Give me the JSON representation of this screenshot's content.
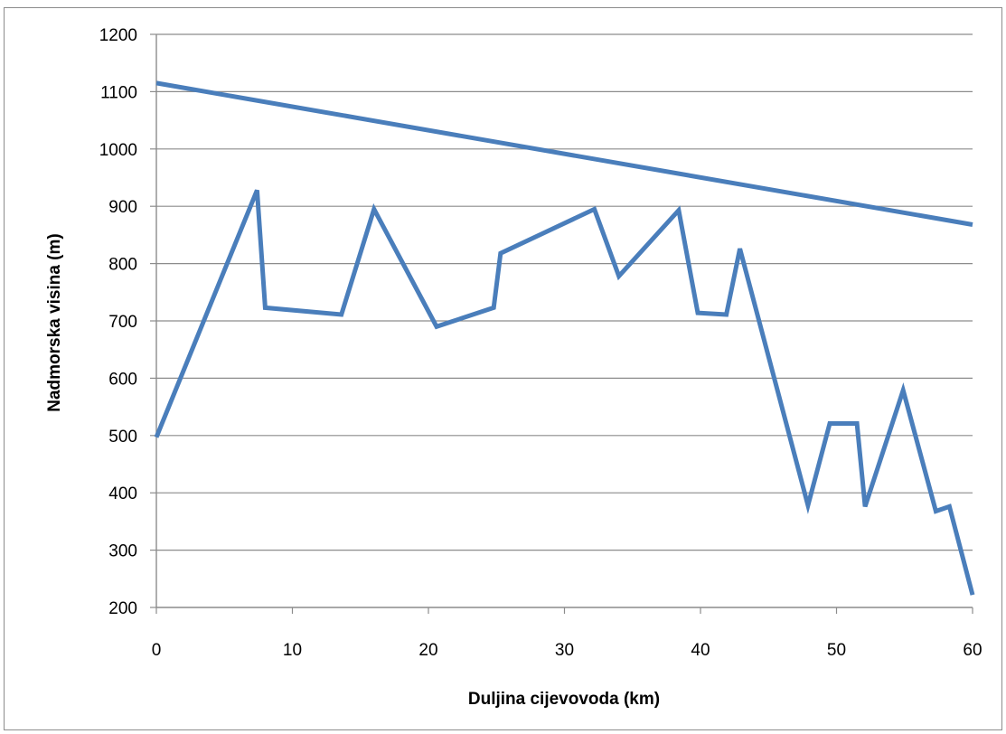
{
  "chart_data": {
    "type": "line",
    "title": "",
    "xlabel": "Duljina cijevovoda  (km)",
    "ylabel": "Nadmorska visina (m)",
    "xlim": [
      0,
      60
    ],
    "ylim": [
      200,
      1200
    ],
    "xticks": [
      0,
      10,
      20,
      30,
      40,
      50,
      60
    ],
    "yticks": [
      200,
      300,
      400,
      500,
      600,
      700,
      800,
      900,
      1000,
      1100,
      1200
    ],
    "grid": "horizontal",
    "legend": "none",
    "colors": {
      "series": "#4a7ebb",
      "grid": "#8c8c8c",
      "axis": "#8c8c8c"
    },
    "series": [
      {
        "points": [
          [
            0,
            1115
          ],
          [
            60,
            868
          ]
        ]
      },
      {
        "points": [
          [
            0,
            497
          ],
          [
            7.4,
            928
          ],
          [
            8.0,
            723
          ],
          [
            13.6,
            711
          ],
          [
            16.0,
            895
          ],
          [
            20.6,
            690
          ],
          [
            24.8,
            723
          ],
          [
            25.3,
            818
          ],
          [
            32.2,
            895
          ],
          [
            34.0,
            778
          ],
          [
            38.4,
            893
          ],
          [
            39.8,
            714
          ],
          [
            41.9,
            711
          ],
          [
            42.9,
            826
          ],
          [
            47.9,
            378
          ],
          [
            49.5,
            521
          ],
          [
            51.5,
            521
          ],
          [
            52.1,
            376
          ],
          [
            54.9,
            579
          ],
          [
            57.3,
            368
          ],
          [
            58.3,
            376
          ],
          [
            60,
            222
          ]
        ]
      }
    ]
  }
}
